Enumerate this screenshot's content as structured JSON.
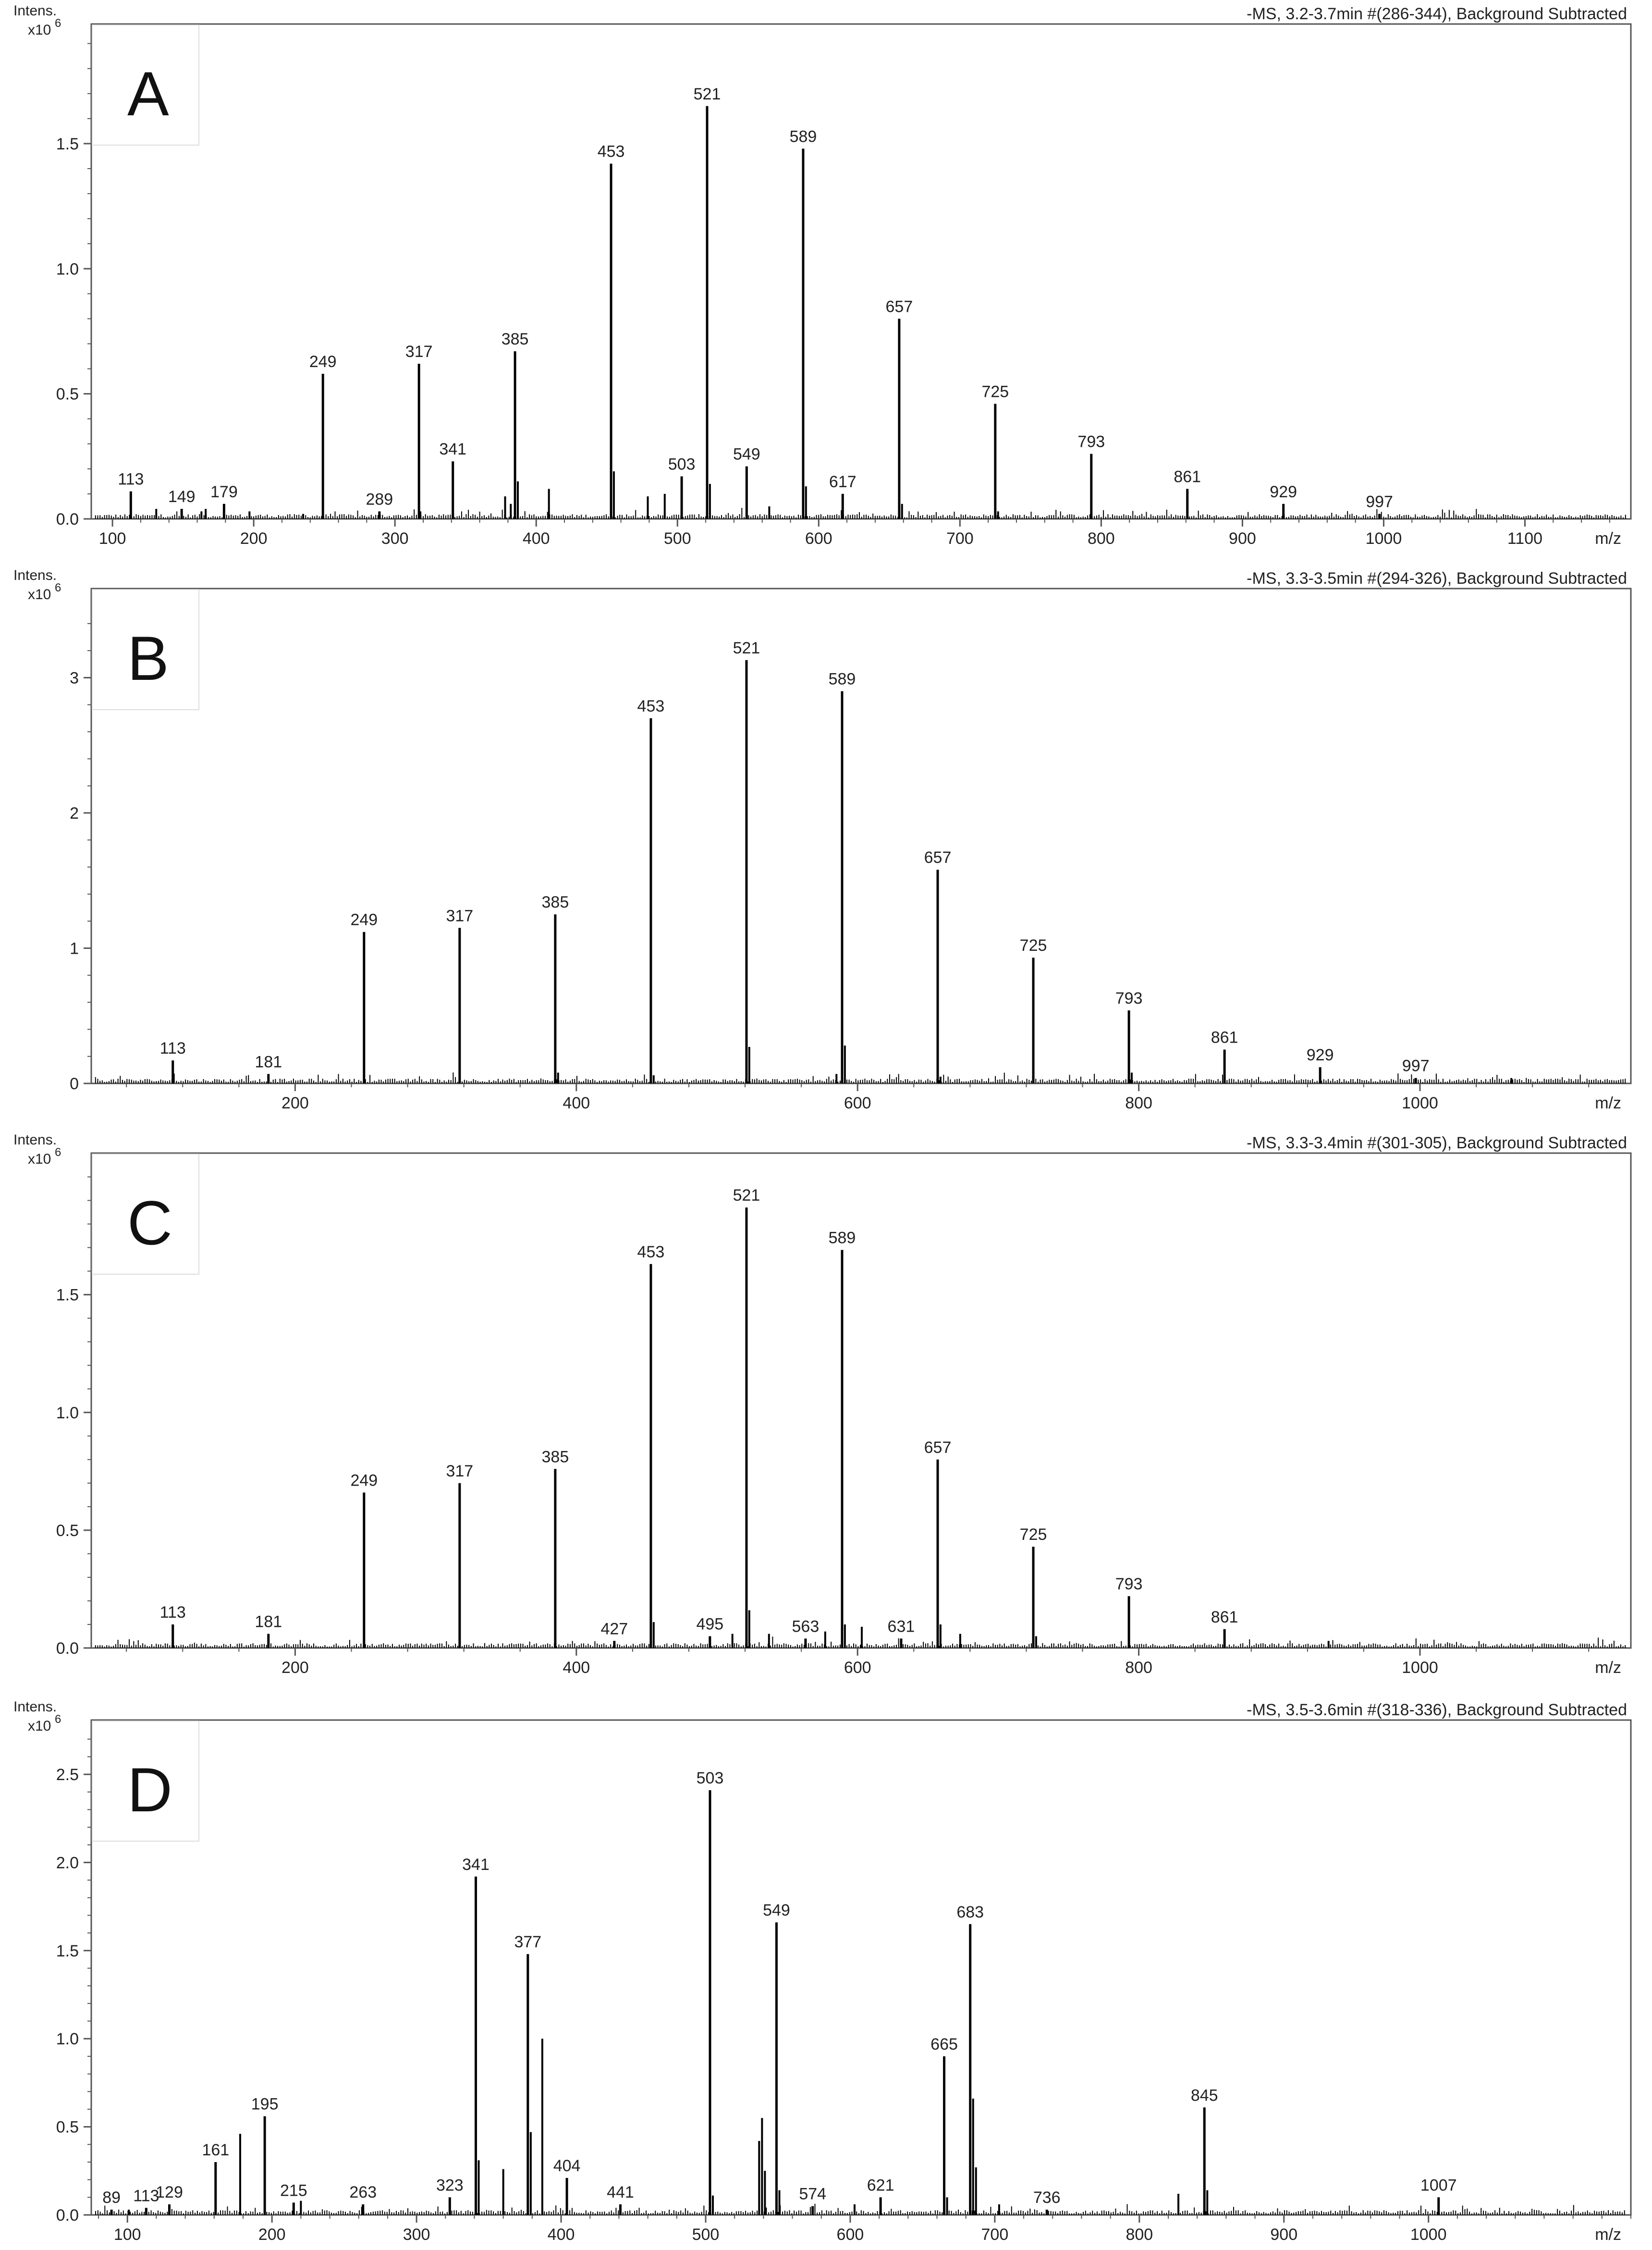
{
  "colors": {
    "line": "#000000",
    "frame": "#555555",
    "letter_box": "#dddddd"
  },
  "chart_data": [
    {
      "type": "bar",
      "panel_label": "A",
      "title": "-MS, 3.2-3.7min #(286-344), Background Subtracted",
      "ylabel_line1": "Intens.",
      "ylabel_line2": "x10",
      "ylabel_exp": "6",
      "xlabel": "m/z",
      "xlim": [
        85,
        1175
      ],
      "ylim": [
        0,
        1.93
      ],
      "yticks": [
        "0.0",
        "0.5",
        "1.0",
        "1.5"
      ],
      "ytick_values": [
        0,
        0.5,
        1.0,
        1.5
      ],
      "xticks": [
        "100",
        "200",
        "300",
        "400",
        "500",
        "600",
        "700",
        "800",
        "900",
        "1000",
        "1100"
      ],
      "xtick_values": [
        100,
        200,
        300,
        400,
        500,
        600,
        700,
        800,
        900,
        1000,
        1100
      ],
      "peaks": [
        {
          "x": 113,
          "y": 0.11,
          "label": "113"
        },
        {
          "x": 149,
          "y": 0.04,
          "label": "149"
        },
        {
          "x": 179,
          "y": 0.06,
          "label": "179"
        },
        {
          "x": 249,
          "y": 0.58,
          "label": "249"
        },
        {
          "x": 289,
          "y": 0.03,
          "label": "289"
        },
        {
          "x": 317,
          "y": 0.62,
          "label": "317"
        },
        {
          "x": 341,
          "y": 0.23,
          "label": "341"
        },
        {
          "x": 385,
          "y": 0.67,
          "label": "385"
        },
        {
          "x": 453,
          "y": 1.42,
          "label": "453"
        },
        {
          "x": 503,
          "y": 0.17,
          "label": "503"
        },
        {
          "x": 521,
          "y": 1.65,
          "label": "521"
        },
        {
          "x": 549,
          "y": 0.21,
          "label": "549"
        },
        {
          "x": 589,
          "y": 1.48,
          "label": "589"
        },
        {
          "x": 617,
          "y": 0.1,
          "label": "617"
        },
        {
          "x": 657,
          "y": 0.8,
          "label": "657"
        },
        {
          "x": 725,
          "y": 0.46,
          "label": "725"
        },
        {
          "x": 793,
          "y": 0.26,
          "label": "793"
        },
        {
          "x": 861,
          "y": 0.12,
          "label": "861"
        },
        {
          "x": 929,
          "y": 0.06,
          "label": "929"
        },
        {
          "x": 997,
          "y": 0.02,
          "label": "997"
        }
      ],
      "minor_peaks": [
        {
          "x": 131,
          "y": 0.04
        },
        {
          "x": 163,
          "y": 0.03
        },
        {
          "x": 166,
          "y": 0.04
        },
        {
          "x": 197,
          "y": 0.03
        },
        {
          "x": 235,
          "y": 0.02
        },
        {
          "x": 318,
          "y": 0.03
        },
        {
          "x": 378,
          "y": 0.09
        },
        {
          "x": 382,
          "y": 0.06
        },
        {
          "x": 387,
          "y": 0.15
        },
        {
          "x": 409,
          "y": 0.12
        },
        {
          "x": 455,
          "y": 0.19
        },
        {
          "x": 479,
          "y": 0.09
        },
        {
          "x": 491,
          "y": 0.1
        },
        {
          "x": 523,
          "y": 0.14
        },
        {
          "x": 565,
          "y": 0.05
        },
        {
          "x": 591,
          "y": 0.13
        },
        {
          "x": 659,
          "y": 0.06
        },
        {
          "x": 727,
          "y": 0.03
        }
      ]
    },
    {
      "type": "bar",
      "panel_label": "B",
      "title": "-MS, 3.3-3.5min #(294-326), Background Subtracted",
      "ylabel_line1": "Intens.",
      "ylabel_line2": "x10",
      "ylabel_exp": "6",
      "xlabel": "m/z",
      "xlim": [
        55,
        1150
      ],
      "ylim": [
        0,
        3.57
      ],
      "yticks": [
        "0",
        "1",
        "2",
        "3"
      ],
      "ytick_values": [
        0,
        1,
        2,
        3
      ],
      "xticks": [
        "200",
        "400",
        "600",
        "800",
        "1000"
      ],
      "xtick_values": [
        200,
        400,
        600,
        800,
        1000
      ],
      "peaks": [
        {
          "x": 113,
          "y": 0.17,
          "label": "113"
        },
        {
          "x": 181,
          "y": 0.07,
          "label": "181"
        },
        {
          "x": 249,
          "y": 1.12,
          "label": "249"
        },
        {
          "x": 317,
          "y": 1.15,
          "label": "317"
        },
        {
          "x": 385,
          "y": 1.25,
          "label": "385"
        },
        {
          "x": 453,
          "y": 2.7,
          "label": "453"
        },
        {
          "x": 521,
          "y": 3.13,
          "label": "521"
        },
        {
          "x": 589,
          "y": 2.9,
          "label": "589"
        },
        {
          "x": 657,
          "y": 1.58,
          "label": "657"
        },
        {
          "x": 725,
          "y": 0.93,
          "label": "725"
        },
        {
          "x": 793,
          "y": 0.54,
          "label": "793"
        },
        {
          "x": 861,
          "y": 0.25,
          "label": "861"
        },
        {
          "x": 929,
          "y": 0.12,
          "label": "929"
        },
        {
          "x": 997,
          "y": 0.04,
          "label": "997"
        }
      ],
      "minor_peaks": [
        {
          "x": 387,
          "y": 0.08
        },
        {
          "x": 455,
          "y": 0.06
        },
        {
          "x": 523,
          "y": 0.27
        },
        {
          "x": 585,
          "y": 0.07
        },
        {
          "x": 591,
          "y": 0.28
        },
        {
          "x": 659,
          "y": 0.05
        },
        {
          "x": 795,
          "y": 0.08
        },
        {
          "x": 1065,
          "y": 0.04
        }
      ]
    },
    {
      "type": "bar",
      "panel_label": "C",
      "title": "-MS, 3.3-3.4min #(301-305), Background Subtracted",
      "ylabel_line1": "Intens.",
      "ylabel_line2": "x10",
      "ylabel_exp": "6",
      "xlabel": "m/z",
      "xlim": [
        55,
        1150
      ],
      "ylim": [
        0,
        2.05
      ],
      "yticks": [
        "0.0",
        "0.5",
        "1.0",
        "1.5"
      ],
      "ytick_values": [
        0,
        0.5,
        1.0,
        1.5
      ],
      "xticks": [
        "200",
        "400",
        "600",
        "800",
        "1000"
      ],
      "xtick_values": [
        200,
        400,
        600,
        800,
        1000
      ],
      "peaks": [
        {
          "x": 113,
          "y": 0.1,
          "label": "113"
        },
        {
          "x": 181,
          "y": 0.06,
          "label": "181"
        },
        {
          "x": 249,
          "y": 0.66,
          "label": "249"
        },
        {
          "x": 317,
          "y": 0.7,
          "label": "317"
        },
        {
          "x": 385,
          "y": 0.76,
          "label": "385"
        },
        {
          "x": 427,
          "y": 0.03,
          "label": "427"
        },
        {
          "x": 453,
          "y": 1.63,
          "label": "453"
        },
        {
          "x": 495,
          "y": 0.05,
          "label": "495"
        },
        {
          "x": 521,
          "y": 1.87,
          "label": "521"
        },
        {
          "x": 563,
          "y": 0.04,
          "label": "563"
        },
        {
          "x": 589,
          "y": 1.69,
          "label": "589"
        },
        {
          "x": 631,
          "y": 0.04,
          "label": "631"
        },
        {
          "x": 657,
          "y": 0.8,
          "label": "657"
        },
        {
          "x": 725,
          "y": 0.43,
          "label": "725"
        },
        {
          "x": 793,
          "y": 0.22,
          "label": "793"
        },
        {
          "x": 861,
          "y": 0.08,
          "label": "861"
        }
      ],
      "minor_peaks": [
        {
          "x": 455,
          "y": 0.11
        },
        {
          "x": 511,
          "y": 0.06
        },
        {
          "x": 523,
          "y": 0.16
        },
        {
          "x": 537,
          "y": 0.06
        },
        {
          "x": 577,
          "y": 0.07
        },
        {
          "x": 591,
          "y": 0.1
        },
        {
          "x": 603,
          "y": 0.09
        },
        {
          "x": 659,
          "y": 0.1
        },
        {
          "x": 673,
          "y": 0.06
        },
        {
          "x": 727,
          "y": 0.05
        },
        {
          "x": 935,
          "y": 0.03
        }
      ]
    },
    {
      "type": "bar",
      "panel_label": "D",
      "title": "-MS, 3.5-3.6min #(318-336), Background Subtracted",
      "ylabel_line1": "Intens.",
      "ylabel_line2": "x10",
      "ylabel_exp": "6",
      "xlabel": "m/z",
      "xlim": [
        75,
        1140
      ],
      "ylim": [
        0,
        2.74
      ],
      "yticks": [
        "0.0",
        "0.5",
        "1.0",
        "1.5",
        "2.0",
        "2.5"
      ],
      "ytick_values": [
        0,
        0.5,
        1.0,
        1.5,
        2.0,
        2.5
      ],
      "xticks": [
        "100",
        "200",
        "300",
        "400",
        "500",
        "600",
        "700",
        "800",
        "900",
        "1000"
      ],
      "xtick_values": [
        100,
        200,
        300,
        400,
        500,
        600,
        700,
        800,
        900,
        1000
      ],
      "peaks": [
        {
          "x": 89,
          "y": 0.03,
          "label": "89"
        },
        {
          "x": 113,
          "y": 0.04,
          "label": "113"
        },
        {
          "x": 129,
          "y": 0.06,
          "label": "129"
        },
        {
          "x": 161,
          "y": 0.3,
          "label": "161"
        },
        {
          "x": 195,
          "y": 0.56,
          "label": "195"
        },
        {
          "x": 215,
          "y": 0.07,
          "label": "215"
        },
        {
          "x": 263,
          "y": 0.06,
          "label": "263"
        },
        {
          "x": 323,
          "y": 0.1,
          "label": "323"
        },
        {
          "x": 341,
          "y": 1.92,
          "label": "341"
        },
        {
          "x": 377,
          "y": 1.48,
          "label": "377"
        },
        {
          "x": 404,
          "y": 0.21,
          "label": "404"
        },
        {
          "x": 441,
          "y": 0.06,
          "label": "441"
        },
        {
          "x": 503,
          "y": 2.41,
          "label": "503"
        },
        {
          "x": 549,
          "y": 1.66,
          "label": "549"
        },
        {
          "x": 574,
          "y": 0.05,
          "label": "574"
        },
        {
          "x": 621,
          "y": 0.1,
          "label": "621"
        },
        {
          "x": 665,
          "y": 0.9,
          "label": "665"
        },
        {
          "x": 683,
          "y": 1.65,
          "label": "683"
        },
        {
          "x": 736,
          "y": 0.03,
          "label": "736"
        },
        {
          "x": 845,
          "y": 0.61,
          "label": "845"
        },
        {
          "x": 1007,
          "y": 0.1,
          "label": "1007"
        }
      ],
      "minor_peaks": [
        {
          "x": 101,
          "y": 0.03
        },
        {
          "x": 178,
          "y": 0.46
        },
        {
          "x": 220,
          "y": 0.08
        },
        {
          "x": 343,
          "y": 0.31
        },
        {
          "x": 360,
          "y": 0.26
        },
        {
          "x": 379,
          "y": 0.47
        },
        {
          "x": 387,
          "y": 1.0
        },
        {
          "x": 505,
          "y": 0.11
        },
        {
          "x": 537,
          "y": 0.42
        },
        {
          "x": 539,
          "y": 0.55
        },
        {
          "x": 541,
          "y": 0.25
        },
        {
          "x": 551,
          "y": 0.14
        },
        {
          "x": 603,
          "y": 0.06
        },
        {
          "x": 667,
          "y": 0.1
        },
        {
          "x": 685,
          "y": 0.66
        },
        {
          "x": 687,
          "y": 0.27
        },
        {
          "x": 703,
          "y": 0.06
        },
        {
          "x": 827,
          "y": 0.12
        },
        {
          "x": 847,
          "y": 0.14
        }
      ]
    }
  ]
}
